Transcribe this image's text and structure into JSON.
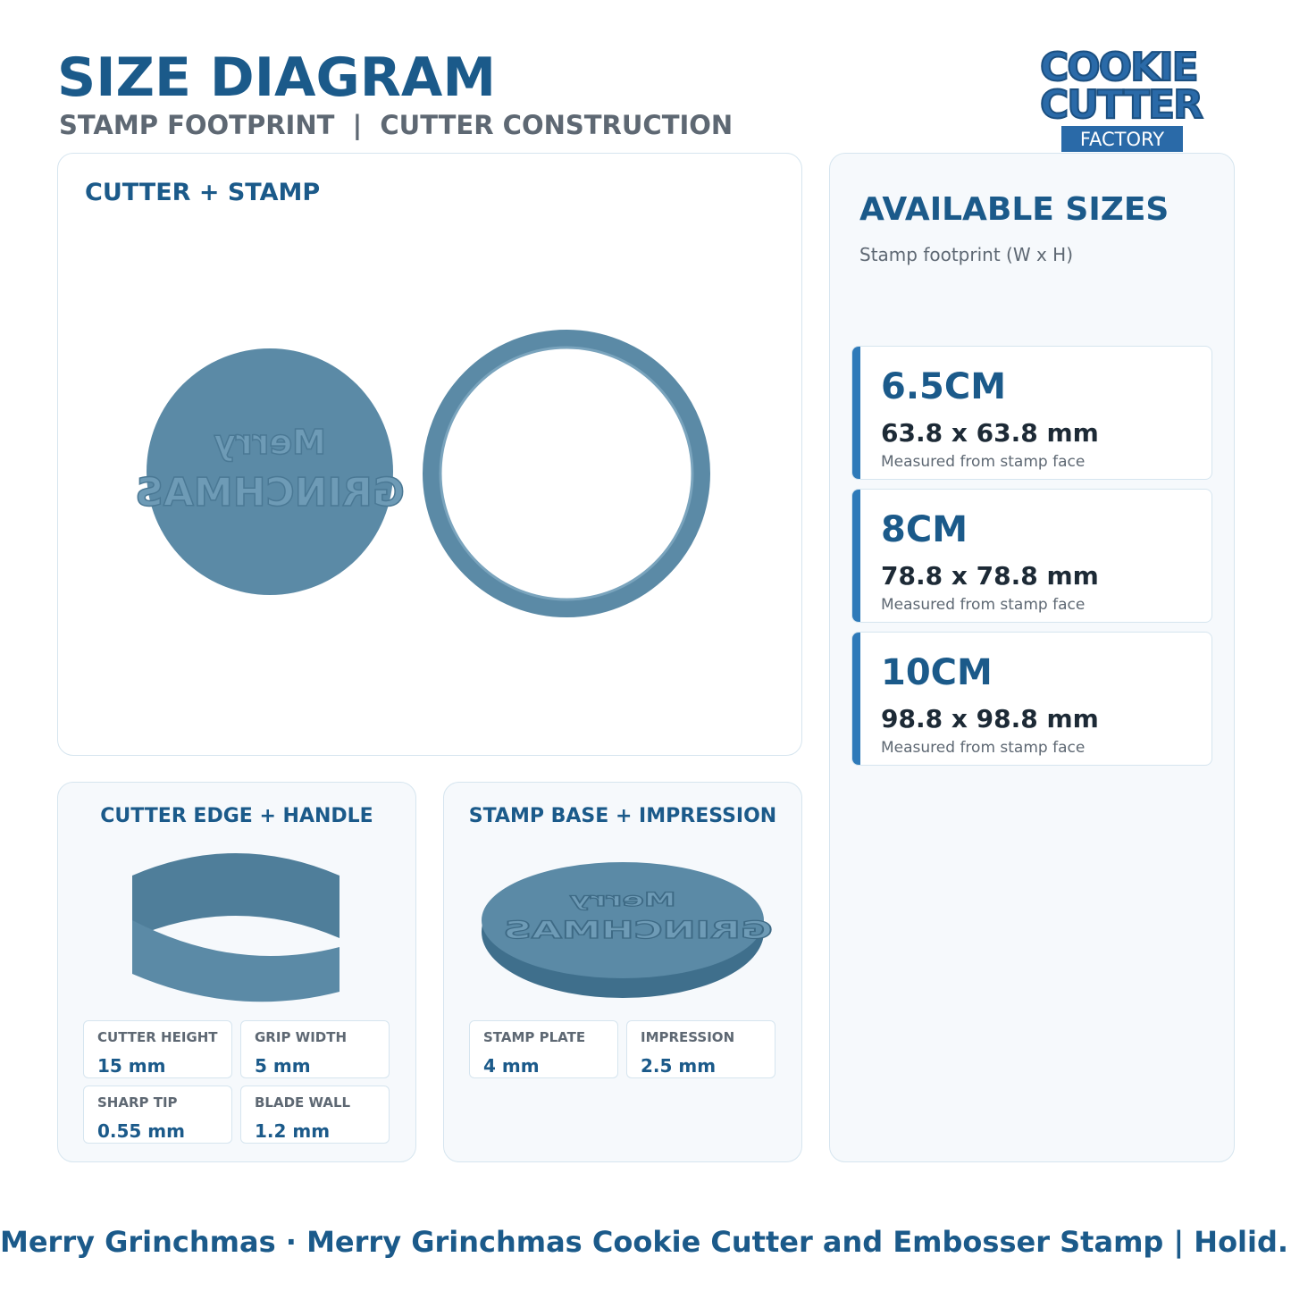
{
  "header": {
    "title": "SIZE DIAGRAM",
    "subtitle": "STAMP FOOTPRINT  |  CUTTER CONSTRUCTION"
  },
  "logo": {
    "line1": "COOKIE",
    "line2": "CUTTER",
    "line3": "FACTORY"
  },
  "main_panel": {
    "title": "CUTTER + STAMP",
    "stamp_text": [
      "Merry",
      "GRINCHMAS"
    ]
  },
  "sizes": {
    "title": "AVAILABLE SIZES",
    "subtitle": "Stamp footprint (W x H)",
    "items": [
      {
        "label": "6.5CM",
        "dimensions": "63.8 x 63.8 mm",
        "note": "Measured from stamp face"
      },
      {
        "label": "8CM",
        "dimensions": "78.8 x 78.8 mm",
        "note": "Measured from stamp face"
      },
      {
        "label": "10CM",
        "dimensions": "98.8 x 98.8 mm",
        "note": "Measured from stamp face"
      }
    ]
  },
  "cutter_panel": {
    "title": "CUTTER EDGE + HANDLE",
    "specs": [
      {
        "label": "CUTTER HEIGHT",
        "value": "15 mm"
      },
      {
        "label": "GRIP WIDTH",
        "value": "5 mm"
      },
      {
        "label": "SHARP TIP",
        "value": "0.55 mm"
      },
      {
        "label": "BLADE WALL",
        "value": "1.2 mm"
      }
    ]
  },
  "stamp_panel": {
    "title": "STAMP BASE + IMPRESSION",
    "specs": [
      {
        "label": "STAMP PLATE",
        "value": "4 mm"
      },
      {
        "label": "IMPRESSION",
        "value": "2.5 mm"
      }
    ]
  },
  "footer": "Merry Grinchmas · Merry Grinchmas Cookie Cutter and Embosser Stamp | Holid..."
}
